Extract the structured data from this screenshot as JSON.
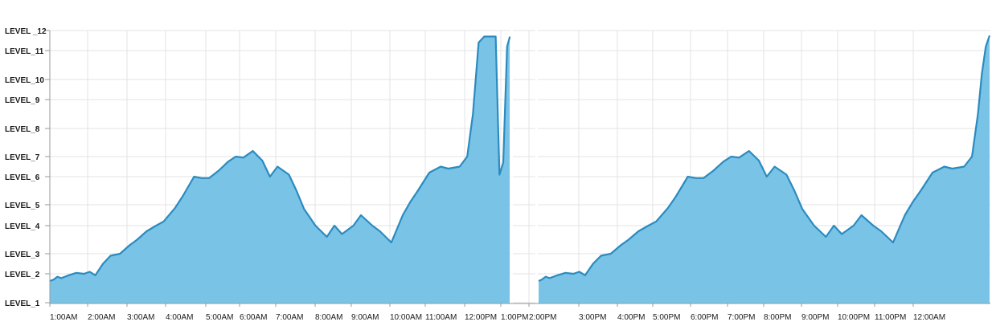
{
  "chart_data": {
    "type": "area",
    "title": "",
    "xlabel": "",
    "ylabel": "",
    "y_levels": [
      "LEVEL_1",
      "LEVEL_2",
      "LEVEL_3",
      "LEVEL_4",
      "LEVEL_5",
      "LEVEL_6",
      "LEVEL_7",
      "LEVEL_8",
      "LEVEL_9",
      "LEVEL_10",
      "LEVEL_11",
      "LEVEL_12"
    ],
    "y_tick_labels": [
      "LEVEL_1",
      "LEVEL_2",
      "LEVEL_3",
      "LEVEL_4",
      "LEVEL_5",
      "LEVEL_6",
      "LEVEL_7",
      "LEVEL_8",
      "LEVEL_9",
      "LEVEL_10",
      "LEVEL_11",
      "LEVEL _12"
    ],
    "x_tick_labels": [
      "1:00AM",
      "2:00AM",
      "3:00AM",
      "4:00AM",
      "5:00AM",
      "6:00AM",
      "7:00AM",
      "8:00AM",
      "9:00AM",
      "10:00AM",
      "11:00AM",
      "12:00PM",
      "1:00PM",
      "2:00PM",
      "3:00PM",
      "4:00PM",
      "5:00PM",
      "6:00PM",
      "7:00PM",
      "8:00PM",
      "9:00PM",
      "10:00PM",
      "11:00PM",
      "12:00AM"
    ],
    "grid": true,
    "fill_color": "#79c3e6",
    "line_color": "#2b8bbf",
    "panels": [
      {
        "x_start": "1:00AM",
        "x_end": "12:00PM",
        "x_hours": [
          0,
          0.1,
          0.2,
          0.3,
          0.5,
          0.7,
          0.9,
          1.05,
          1.2,
          1.4,
          1.6,
          1.85,
          2.1,
          2.3,
          2.55,
          2.8,
          3.0,
          3.3,
          3.5,
          3.8,
          4.0,
          4.2,
          4.45,
          4.7,
          4.9,
          5.1,
          5.35,
          5.6,
          5.8,
          6.0,
          6.3,
          6.5,
          6.7,
          7.0,
          7.3,
          7.5,
          7.7,
          8.0,
          8.2,
          8.5,
          8.7,
          9.0,
          9.3,
          9.5,
          9.7,
          10.0,
          10.3,
          10.5,
          10.8,
          11.0,
          11.15,
          11.3,
          11.45,
          11.6,
          11.75,
          11.85,
          11.95,
          12.05,
          12.25,
          12.5,
          12.7,
          12.95
        ],
        "values": [
          1.75,
          1.8,
          1.9,
          1.85,
          1.95,
          2.05,
          2.0,
          2.1,
          1.95,
          2.5,
          2.9,
          3.0,
          3.3,
          3.5,
          3.8,
          4.0,
          4.2,
          4.85,
          5.3,
          6.0,
          5.95,
          5.95,
          6.3,
          6.75,
          7.0,
          6.95,
          7.2,
          6.8,
          6.0,
          6.5,
          6.1,
          5.5,
          4.8,
          4.0,
          3.6,
          4.0,
          3.7,
          4.0,
          4.5,
          4.0,
          3.8,
          3.4,
          4.5,
          5.1,
          5.5,
          6.2,
          6.5,
          6.4,
          6.5,
          7.0,
          8.5,
          11.4,
          11.7,
          11.7,
          11.7,
          6.1,
          6.7,
          11.2,
          11.65,
          11.7,
          11.7,
          11.7
        ]
      },
      {
        "x_start": "1:00PM",
        "x_end": "12:00AM",
        "x_hours": [
          0,
          0.1,
          0.2,
          0.3,
          0.5,
          0.7,
          0.9,
          1.05,
          1.2,
          1.4,
          1.6,
          1.85,
          2.1,
          2.3,
          2.55,
          2.8,
          3.0,
          3.3,
          3.5,
          3.8,
          4.0,
          4.2,
          4.45,
          4.7,
          4.9,
          5.1,
          5.35,
          5.6,
          5.8,
          6.0,
          6.3,
          6.5,
          6.7,
          7.0,
          7.3,
          7.5,
          7.7,
          8.0,
          8.2,
          8.5,
          8.7,
          9.0,
          9.3,
          9.5,
          9.7,
          10.0,
          10.3,
          10.5,
          10.8,
          11.0,
          11.15,
          11.25,
          11.35,
          11.45
        ],
        "values": [
          1.75,
          1.8,
          1.9,
          1.85,
          1.95,
          2.05,
          2.0,
          2.1,
          1.95,
          2.5,
          2.9,
          3.0,
          3.3,
          3.5,
          3.8,
          4.0,
          4.2,
          4.85,
          5.3,
          6.0,
          5.95,
          5.95,
          6.3,
          6.75,
          7.0,
          6.95,
          7.2,
          6.8,
          6.0,
          6.5,
          6.1,
          5.5,
          4.8,
          4.0,
          3.6,
          4.0,
          3.7,
          4.0,
          4.5,
          4.0,
          3.8,
          3.4,
          4.5,
          5.1,
          5.5,
          6.2,
          6.5,
          6.4,
          6.5,
          7.0,
          8.5,
          10.2,
          11.2,
          11.75
        ]
      }
    ]
  }
}
